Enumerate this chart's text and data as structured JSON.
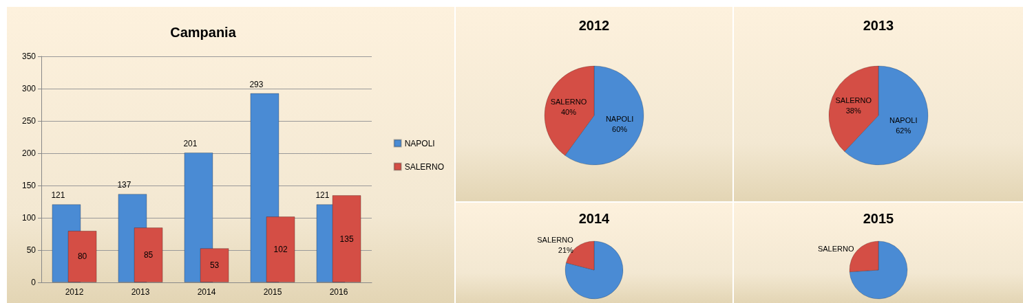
{
  "chart_data": [
    {
      "type": "bar",
      "title": "Campania",
      "categories": [
        "2012",
        "2013",
        "2014",
        "2015",
        "2016"
      ],
      "series": [
        {
          "name": "NAPOLI",
          "color": "#4a8bd4",
          "values": [
            121,
            137,
            201,
            293,
            121
          ]
        },
        {
          "name": "SALERNO",
          "color": "#d44e45",
          "values": [
            80,
            85,
            53,
            102,
            135
          ]
        }
      ],
      "ylim": [
        0,
        350
      ],
      "yticks": [
        0,
        50,
        100,
        150,
        200,
        250,
        300,
        350
      ],
      "grid": "y",
      "legend": "right",
      "data_labels": true
    },
    {
      "type": "pie",
      "title": "2012",
      "categories": [
        "NAPOLI",
        "SALERNO"
      ],
      "values": [
        60,
        40
      ],
      "value_labels": [
        "60%",
        "40%"
      ],
      "colors": [
        "#4a8bd4",
        "#d44e45"
      ]
    },
    {
      "type": "pie",
      "title": "2013",
      "categories": [
        "NAPOLI",
        "SALERNO"
      ],
      "values": [
        62,
        38
      ],
      "value_labels": [
        "62%",
        "38%"
      ],
      "colors": [
        "#4a8bd4",
        "#d44e45"
      ]
    },
    {
      "type": "pie",
      "title": "2014",
      "categories": [
        null,
        "SALERNO"
      ],
      "values": [
        79,
        21
      ],
      "value_labels": [
        null,
        "21%"
      ],
      "colors": [
        "#4a8bd4",
        "#d44e45"
      ]
    },
    {
      "type": "pie",
      "title": "2015",
      "categories": [
        null,
        "SALERNO"
      ],
      "values": [
        74,
        26
      ],
      "value_labels": [
        null,
        null
      ],
      "colors": [
        "#4a8bd4",
        "#d44e45"
      ]
    }
  ]
}
